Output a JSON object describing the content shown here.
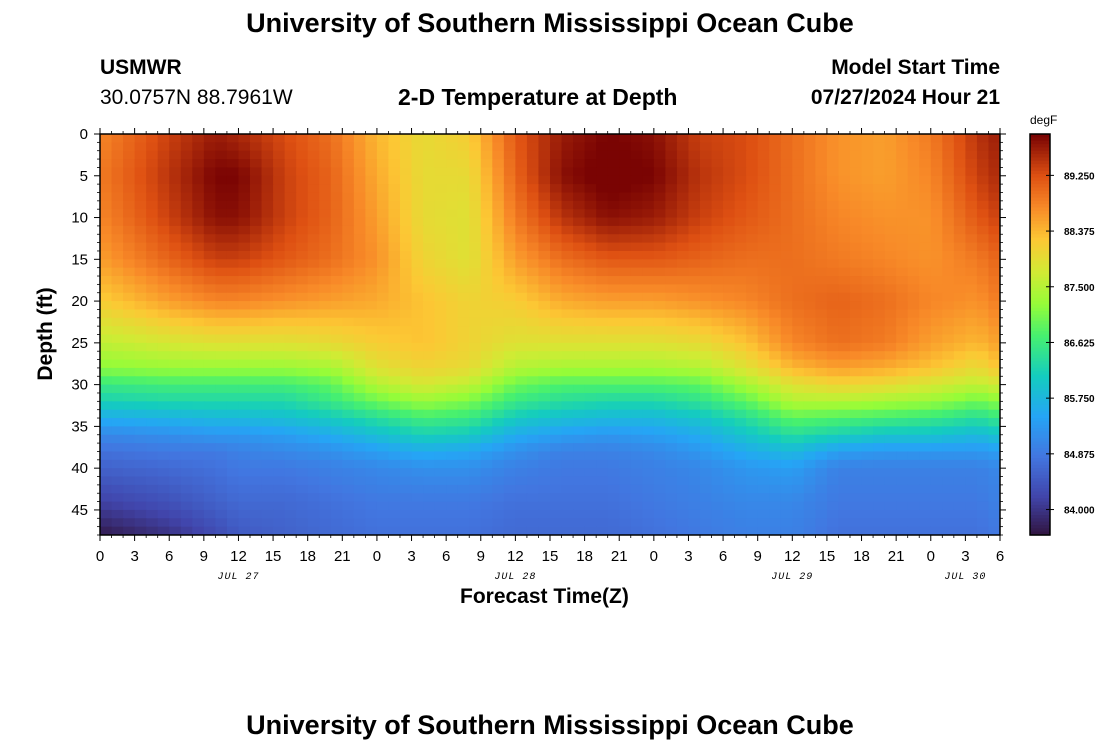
{
  "page": {
    "title": "University of Southern Mississippi Ocean Cube",
    "footer_title": "University of Southern Mississippi Ocean Cube"
  },
  "station": {
    "name": "USMWR",
    "coords": "30.0757N  88.7961W"
  },
  "model": {
    "label": "Model Start Time",
    "time": "07/27/2024 Hour 21"
  },
  "chart_data": {
    "type": "heatmap",
    "title": "2-D Temperature at Depth",
    "xlabel": "Forecast Time(Z)",
    "ylabel": "Depth (ft)",
    "x_hours_range": [
      0,
      78
    ],
    "x_tick_labels": [
      "0",
      "3",
      "6",
      "9",
      "12",
      "15",
      "18",
      "21",
      "0",
      "3",
      "6",
      "9",
      "12",
      "15",
      "18",
      "21",
      "0",
      "3",
      "6",
      "9",
      "12",
      "15",
      "18",
      "21",
      "0",
      "3",
      "6"
    ],
    "date_labels": [
      {
        "label": "JUL 27",
        "hour": 12
      },
      {
        "label": "JUL 28",
        "hour": 36
      },
      {
        "label": "JUL 29",
        "hour": 60
      },
      {
        "label": "JUL 30",
        "hour": 75
      }
    ],
    "y_range": [
      0,
      48
    ],
    "y_ticks": [
      0,
      5,
      10,
      15,
      20,
      25,
      30,
      35,
      40,
      45
    ],
    "colorbar": {
      "units": "degF",
      "range": [
        83.6,
        89.9
      ],
      "tick_labels": [
        "89.250",
        "88.375",
        "87.500",
        "86.625",
        "85.750",
        "84.875",
        "84.000"
      ],
      "tick_values": [
        89.25,
        88.375,
        87.5,
        86.625,
        85.75,
        84.875,
        84.0
      ]
    },
    "columns_hours": [
      0,
      6,
      10,
      12,
      16,
      20,
      24,
      28,
      32,
      36,
      40,
      44,
      48,
      52,
      56,
      60,
      64,
      68,
      72,
      76,
      78
    ],
    "depths_ft": [
      0,
      5,
      10,
      15,
      20,
      25,
      28,
      30,
      32,
      34,
      36,
      38,
      40,
      44,
      48
    ],
    "temperature_degF": [
      [
        88.8,
        89.4,
        89.7,
        89.6,
        89.3,
        89.0,
        88.4,
        88.0,
        88.2,
        89.2,
        89.7,
        89.9,
        89.8,
        89.4,
        89.3,
        89.0,
        88.7,
        88.6,
        88.9,
        89.5,
        89.7
      ],
      [
        88.9,
        89.5,
        89.9,
        89.9,
        89.4,
        89.1,
        88.5,
        88.0,
        88.0,
        89.1,
        89.8,
        90.0,
        89.9,
        89.5,
        89.3,
        89.0,
        88.7,
        88.6,
        88.8,
        89.4,
        89.6
      ],
      [
        88.8,
        89.4,
        89.8,
        89.8,
        89.4,
        89.1,
        88.6,
        88.0,
        87.9,
        88.9,
        89.5,
        89.8,
        89.7,
        89.4,
        89.2,
        89.0,
        88.8,
        88.7,
        88.7,
        89.2,
        89.4
      ],
      [
        88.6,
        89.1,
        89.4,
        89.4,
        89.2,
        89.0,
        88.7,
        88.1,
        87.9,
        88.6,
        89.0,
        89.2,
        89.2,
        89.1,
        89.0,
        89.0,
        88.9,
        88.8,
        88.7,
        88.9,
        89.1
      ],
      [
        88.2,
        88.6,
        88.8,
        88.8,
        88.7,
        88.6,
        88.5,
        88.3,
        88.1,
        88.2,
        88.5,
        88.6,
        88.6,
        88.7,
        88.8,
        89.0,
        89.1,
        89.0,
        88.8,
        88.7,
        88.9
      ],
      [
        87.6,
        87.8,
        87.9,
        87.9,
        87.9,
        88.0,
        88.2,
        88.3,
        88.1,
        87.9,
        87.9,
        87.9,
        87.9,
        88.0,
        88.3,
        88.8,
        89.0,
        88.9,
        88.6,
        88.4,
        88.6
      ],
      [
        87.2,
        87.3,
        87.3,
        87.3,
        87.3,
        87.4,
        87.9,
        88.1,
        88.0,
        87.5,
        87.4,
        87.4,
        87.4,
        87.5,
        87.9,
        88.4,
        88.6,
        88.5,
        88.3,
        88.0,
        88.3
      ],
      [
        86.6,
        86.7,
        86.7,
        86.7,
        86.7,
        86.9,
        87.5,
        87.8,
        87.6,
        87.0,
        86.8,
        86.8,
        86.8,
        86.9,
        87.4,
        87.9,
        88.1,
        88.0,
        87.8,
        87.6,
        87.8
      ],
      [
        86.2,
        86.3,
        86.3,
        86.3,
        86.3,
        86.6,
        87.0,
        87.3,
        87.1,
        86.6,
        86.4,
        86.3,
        86.3,
        86.5,
        86.9,
        87.5,
        87.5,
        87.4,
        87.3,
        87.0,
        87.2
      ],
      [
        85.6,
        85.7,
        85.8,
        85.8,
        85.9,
        86.1,
        86.4,
        86.7,
        86.6,
        86.1,
        85.9,
        85.8,
        85.8,
        86.0,
        86.4,
        86.9,
        86.8,
        86.7,
        86.6,
        86.4,
        86.6
      ],
      [
        85.1,
        85.2,
        85.3,
        85.3,
        85.4,
        85.6,
        85.9,
        86.2,
        86.1,
        85.6,
        85.4,
        85.3,
        85.4,
        85.6,
        86.0,
        86.4,
        86.2,
        86.0,
        86.0,
        85.8,
        86.0
      ],
      [
        84.8,
        84.9,
        84.9,
        85.0,
        85.1,
        85.2,
        85.4,
        85.6,
        85.5,
        85.2,
        85.0,
        85.0,
        85.1,
        85.3,
        85.6,
        85.8,
        85.4,
        85.3,
        85.3,
        85.3,
        85.4
      ],
      [
        84.6,
        84.7,
        84.8,
        84.9,
        84.9,
        85.0,
        85.1,
        85.2,
        85.2,
        85.0,
        84.9,
        84.9,
        85.0,
        85.1,
        85.3,
        85.4,
        85.0,
        85.0,
        85.0,
        85.0,
        85.1
      ],
      [
        84.2,
        84.4,
        84.6,
        84.7,
        84.7,
        84.8,
        84.9,
        84.9,
        84.9,
        84.8,
        84.8,
        84.8,
        84.9,
        85.0,
        85.1,
        85.1,
        84.9,
        84.9,
        84.9,
        84.9,
        85.0
      ],
      [
        83.7,
        84.0,
        84.3,
        84.5,
        84.6,
        84.7,
        84.8,
        84.8,
        84.8,
        84.7,
        84.7,
        84.7,
        84.8,
        84.9,
        85.0,
        85.0,
        84.8,
        84.8,
        84.8,
        84.8,
        84.9
      ]
    ]
  }
}
